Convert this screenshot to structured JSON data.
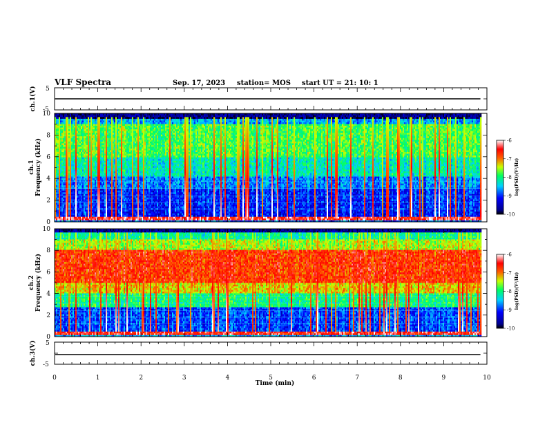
{
  "header": {
    "title": "VLF Spectra",
    "date": "Sep. 17, 2023",
    "station": "station= MOS",
    "start": "start  UT  =   21: 10: 1"
  },
  "chart_data": {
    "type": "heatmap",
    "xlabel": "Time  (min)",
    "x_ticks": [
      "0",
      "1",
      "2",
      "3",
      "4",
      "5",
      "6",
      "7",
      "8",
      "9",
      "10"
    ],
    "xlim": [
      0,
      10
    ],
    "data_end_min": 9.85,
    "panels": [
      {
        "id": "ch1_waveform",
        "ylabel": "ch.1(V)",
        "ylim": [
          -5,
          5
        ],
        "y_ticks": [
          "5",
          "-5"
        ],
        "trace_level": 0
      },
      {
        "id": "ch1_spectrogram",
        "ylabel_top": "ch.1",
        "ylabel": "Frequency  (kHz)",
        "ylim": [
          0,
          10
        ],
        "y_ticks": [
          "0",
          "2",
          "4",
          "6",
          "8",
          "10"
        ],
        "colorbar": {
          "label": "log(PSD)(V²/Hz)",
          "range": [
            -10,
            -6
          ],
          "ticks": [
            "-6",
            "-7",
            "-8",
            "-9",
            "-10"
          ]
        }
      },
      {
        "id": "ch2_spectrogram",
        "ylabel_top": "ch.2",
        "ylabel": "Frequency  (kHz)",
        "ylim": [
          0,
          10
        ],
        "y_ticks": [
          "0",
          "2",
          "4",
          "6",
          "8",
          "10"
        ],
        "colorbar": {
          "label": "log(PSD)(V²/Hz)",
          "range": [
            -10,
            -6
          ],
          "ticks": [
            "-6",
            "-7",
            "-8",
            "-9",
            "-10"
          ]
        }
      },
      {
        "id": "ch3_waveform",
        "ylabel": "ch.3(V)",
        "ylim": [
          -5,
          5
        ],
        "y_ticks": [
          "5",
          "-5"
        ],
        "trace_level": -1
      }
    ]
  }
}
